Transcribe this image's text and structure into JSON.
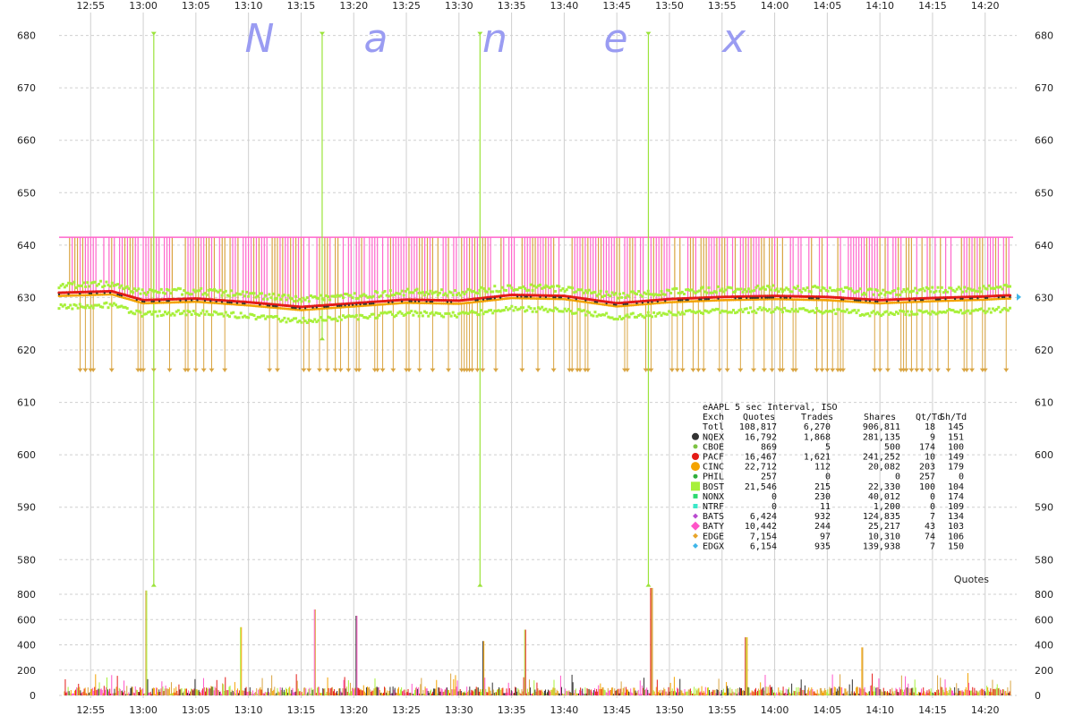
{
  "watermark": [
    "N",
    "a",
    "n",
    "e",
    "x"
  ],
  "colors": {
    "grid": "#cfcfcf",
    "nqex": "#333333",
    "cboe": "#7cc242",
    "pacf": "#e41b17",
    "cinc": "#f4a300",
    "phil": "#2fae3c",
    "bost": "#a8f03a",
    "nonx": "#2ad96f",
    "ntrf": "#3ae8c8",
    "bats": "#b94ad0",
    "baty": "#ff55c8",
    "edge": "#e8a42a",
    "edgx": "#3fb6e8",
    "iso_gold": "#d9a441",
    "iso_pink": "#ff66cc",
    "iso_green": "#9be33a"
  },
  "chart_data": {
    "type": "line",
    "x_ticks": [
      "12:55",
      "13:00",
      "13:05",
      "13:10",
      "13:15",
      "13:20",
      "13:25",
      "13:30",
      "13:35",
      "13:40",
      "13:45",
      "13:50",
      "13:55",
      "14:00",
      "14:05",
      "14:10",
      "14:15",
      "14:20"
    ],
    "x_range": [
      "12:52",
      "14:23"
    ],
    "price_axis": {
      "ticks": [
        580,
        590,
        600,
        610,
        620,
        630,
        640,
        650,
        660,
        670,
        680
      ],
      "range": [
        578,
        683
      ]
    },
    "quote_axis": {
      "ticks": [
        0,
        200,
        400,
        600,
        800
      ],
      "range": [
        0,
        880
      ],
      "label": "Quotes"
    },
    "price_series": [
      {
        "x": [
          "12:52",
          "12:57",
          "13:00",
          "13:05",
          "13:10",
          "13:15",
          "13:20",
          "13:25",
          "13:30",
          "13:35",
          "13:40",
          "13:45",
          "13:50",
          "13:55",
          "14:00",
          "14:05",
          "14:10",
          "14:15",
          "14:20",
          "14:22"
        ],
        "y": [
          630.6,
          630.9,
          629.2,
          629.5,
          628.8,
          627.9,
          628.6,
          629.3,
          629.1,
          630.2,
          630.0,
          628.6,
          629.4,
          629.8,
          630.0,
          629.8,
          629.2,
          629.6,
          629.9,
          630.1
        ]
      }
    ],
    "iso_levels": {
      "upper": 641.5,
      "lower": 615.8
    },
    "iso_spikes": [
      {
        "x": "13:01",
        "top": 680.5,
        "bottom": 575.0
      },
      {
        "x": "13:17",
        "top": 680.5,
        "bottom": 622.0
      },
      {
        "x": "13:32",
        "top": 680.5,
        "bottom": 575.0
      },
      {
        "x": "13:48",
        "top": 680.5,
        "bottom": 575.0
      }
    ],
    "quote_peaks": [
      {
        "x": "13:00",
        "y": 830
      },
      {
        "x": "13:16",
        "y": 680
      },
      {
        "x": "13:20",
        "y": 630
      },
      {
        "x": "13:32",
        "y": 430
      },
      {
        "x": "13:48",
        "y": 850
      },
      {
        "x": "13:09",
        "y": 540
      },
      {
        "x": "13:36",
        "y": 520
      },
      {
        "x": "13:57",
        "y": 460
      },
      {
        "x": "14:08",
        "y": 380
      }
    ],
    "legend": {
      "title": "eAAPL 5 sec Interval, ISO",
      "headers": [
        "Exch",
        "Quotes",
        "Trades",
        "Shares",
        "Qt/Td",
        "Sh/Td"
      ],
      "rows": [
        {
          "exch": "Totl",
          "quotes": "108,817",
          "trades": "6,270",
          "shares": "906,811",
          "qt_td": "18",
          "sh_td": "145",
          "color": "",
          "marker": "none"
        },
        {
          "exch": "NQEX",
          "quotes": "16,792",
          "trades": "1,868",
          "shares": "281,135",
          "qt_td": "9",
          "sh_td": "151",
          "color": "#333333",
          "marker": "circle-lg"
        },
        {
          "exch": "CBOE",
          "quotes": "869",
          "trades": "5",
          "shares": "500",
          "qt_td": "174",
          "sh_td": "100",
          "color": "#7cc242",
          "marker": "circle-sm"
        },
        {
          "exch": "PACF",
          "quotes": "16,467",
          "trades": "1,621",
          "shares": "241,252",
          "qt_td": "10",
          "sh_td": "149",
          "color": "#e41b17",
          "marker": "circle-lg"
        },
        {
          "exch": "CINC",
          "quotes": "22,712",
          "trades": "112",
          "shares": "20,082",
          "qt_td": "203",
          "sh_td": "179",
          "color": "#f4a300",
          "marker": "circle-xl"
        },
        {
          "exch": "PHIL",
          "quotes": "257",
          "trades": "0",
          "shares": "0",
          "qt_td": "257",
          "sh_td": "0",
          "color": "#2fae3c",
          "marker": "circle-sm"
        },
        {
          "exch": "BOST",
          "quotes": "21,546",
          "trades": "215",
          "shares": "22,330",
          "qt_td": "100",
          "sh_td": "104",
          "color": "#a8f03a",
          "marker": "square-lg"
        },
        {
          "exch": "NONX",
          "quotes": "0",
          "trades": "230",
          "shares": "40,012",
          "qt_td": "0",
          "sh_td": "174",
          "color": "#2ad96f",
          "marker": "square-sm"
        },
        {
          "exch": "NTRF",
          "quotes": "0",
          "trades": "11",
          "shares": "1,200",
          "qt_td": "0",
          "sh_td": "109",
          "color": "#3ae8c8",
          "marker": "square-sm"
        },
        {
          "exch": "BATS",
          "quotes": "6,424",
          "trades": "932",
          "shares": "124,835",
          "qt_td": "7",
          "sh_td": "134",
          "color": "#b94ad0",
          "marker": "diamond-sm"
        },
        {
          "exch": "BATY",
          "quotes": "10,442",
          "trades": "244",
          "shares": "25,217",
          "qt_td": "43",
          "sh_td": "103",
          "color": "#ff55c8",
          "marker": "diamond-lg"
        },
        {
          "exch": "EDGE",
          "quotes": "7,154",
          "trades": "97",
          "shares": "10,310",
          "qt_td": "74",
          "sh_td": "106",
          "color": "#e8a42a",
          "marker": "diamond-sm"
        },
        {
          "exch": "EDGX",
          "quotes": "6,154",
          "trades": "935",
          "shares": "139,938",
          "qt_td": "7",
          "sh_td": "150",
          "color": "#3fb6e8",
          "marker": "diamond-sm"
        }
      ]
    }
  }
}
